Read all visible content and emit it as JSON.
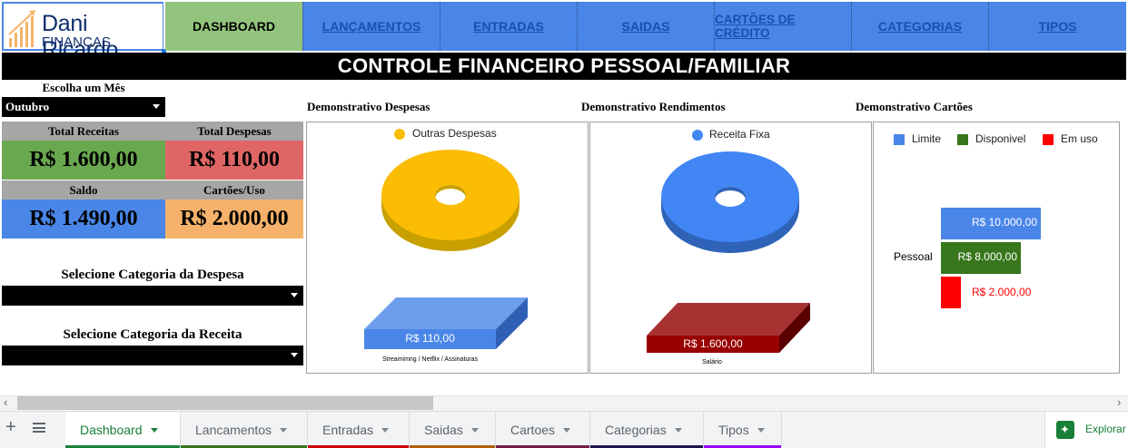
{
  "logo": {
    "brand": "Dani Ricardo",
    "sub": "FINANÇAS"
  },
  "nav": {
    "items": [
      {
        "label": "DASHBOARD"
      },
      {
        "label": "LANÇAMENTOS"
      },
      {
        "label": "ENTRADAS"
      },
      {
        "label": "SAIDAS"
      },
      {
        "label": "CARTÕES DE CRÉDITO"
      },
      {
        "label": "CATEGORIAS"
      },
      {
        "label": "TIPOS"
      }
    ]
  },
  "title": "CONTROLE FINANCEIRO PESSOAL/FAMILIAR",
  "month": {
    "label": "Escolha um Mês",
    "value": "Outubro"
  },
  "demos": {
    "despesas": "Demonstrativo Despesas",
    "rendimentos": "Demonstrativo Rendimentos",
    "cartoes": "Demonstrativo Cartões"
  },
  "kpis": {
    "receitas": {
      "label": "Total Receitas",
      "value": "R$ 1.600,00",
      "color": "#6aa84f"
    },
    "despesas": {
      "label": "Total Despesas",
      "value": "R$ 110,00",
      "color": "#e06666"
    },
    "saldo": {
      "label": "Saldo",
      "value": "R$ 1.490,00",
      "color": "#4a86e8"
    },
    "cartoes": {
      "label": "Cartões/Uso",
      "value": "R$ 2.000,00",
      "color": "#f6b26b"
    }
  },
  "categoria_despesa": {
    "label": "Selecione Categoria da Despesa",
    "value": ""
  },
  "categoria_receita": {
    "label": "Selecione Categoria da Receita",
    "value": ""
  },
  "chart_data": [
    {
      "type": "pie",
      "legend": [
        "Outras Despesas"
      ],
      "values": [
        110
      ],
      "colors": [
        "#fbbc04"
      ],
      "legend_position": "top"
    },
    {
      "type": "bar",
      "categories": [
        "Streamimng / Netflix / Assinaturas"
      ],
      "values": [
        110
      ],
      "data_labels": [
        "R$ 110,00"
      ],
      "colors": [
        "#4a86e8"
      ]
    },
    {
      "type": "pie",
      "legend": [
        "Receita Fixa"
      ],
      "values": [
        1600
      ],
      "colors": [
        "#4285f4"
      ],
      "legend_position": "top"
    },
    {
      "type": "bar",
      "categories": [
        "Salário"
      ],
      "values": [
        1600
      ],
      "data_labels": [
        "R$ 1.600,00"
      ],
      "colors": [
        "#990000"
      ]
    },
    {
      "type": "bar",
      "orientation": "horizontal",
      "categories": [
        "Pessoal"
      ],
      "series": [
        {
          "name": "Limite",
          "values": [
            10000
          ],
          "label": "R$ 10.000,00",
          "color": "#4a86e8"
        },
        {
          "name": "Disponivel",
          "values": [
            8000
          ],
          "label": "R$ 8.000,00",
          "color": "#38761d"
        },
        {
          "name": "Em uso",
          "values": [
            2000
          ],
          "label": "R$ 2.000,00",
          "color": "#ff0000"
        }
      ],
      "legend_position": "top"
    }
  ],
  "sheets": [
    {
      "label": "Dashboard",
      "color": "#188038"
    },
    {
      "label": "Lancamentos",
      "color": "#38761d"
    },
    {
      "label": "Entradas",
      "color": "#cc0000"
    },
    {
      "label": "Saidas",
      "color": "#b45f06"
    },
    {
      "label": "Cartoes",
      "color": "#741b47"
    },
    {
      "label": "Categorias",
      "color": "#20124d"
    },
    {
      "label": "Tipos",
      "color": "#9900ff"
    }
  ],
  "explore": {
    "label": "Explorar"
  }
}
